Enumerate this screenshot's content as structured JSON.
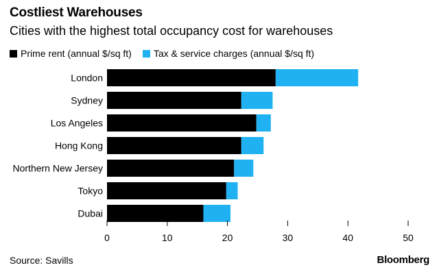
{
  "chart_data": {
    "type": "bar",
    "orientation": "horizontal",
    "stacked": true,
    "title": "Costliest Warehouses",
    "subtitle": "Cities with the highest total occupancy cost for warehouses",
    "categories": [
      "London",
      "Sydney",
      "Los Angeles",
      "Hong Kong",
      "Northern New Jersey",
      "Tokyo",
      "Dubai"
    ],
    "series": [
      {
        "name": "Prime rent (annual $/sq ft)",
        "color": "#000000",
        "values": [
          28.0,
          22.3,
          24.8,
          22.3,
          21.1,
          19.8,
          16.0
        ]
      },
      {
        "name": "Tax & service charges (annual $/sq ft)",
        "color": "#1fb1f2",
        "values": [
          13.7,
          5.2,
          2.4,
          3.7,
          3.2,
          1.9,
          4.5
        ]
      }
    ],
    "xlim": [
      0,
      50
    ],
    "xticks": [
      0,
      10,
      20,
      30,
      40,
      50
    ],
    "xlabel": "",
    "ylabel": "",
    "grid": false,
    "legend_position": "top"
  },
  "source": "Source: Savills",
  "brand": "Bloomberg"
}
